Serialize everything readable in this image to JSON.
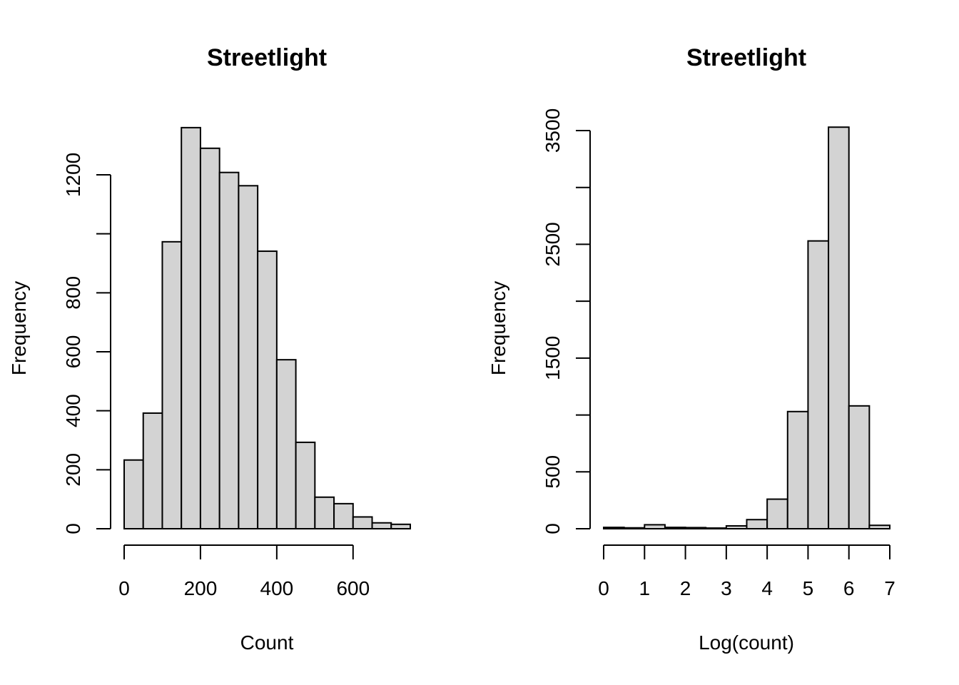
{
  "chart_data": [
    {
      "type": "bar",
      "title": "Streetlight",
      "xlabel": "Count",
      "ylabel": "Frequency",
      "bin_edges": [
        0,
        50,
        100,
        150,
        200,
        250,
        300,
        350,
        400,
        450,
        500,
        550,
        600,
        650,
        700,
        750
      ],
      "values": [
        233,
        392,
        973,
        1360,
        1290,
        1208,
        1163,
        941,
        573,
        293,
        107,
        85,
        40,
        20,
        15
      ],
      "xlim": [
        0,
        750
      ],
      "ylim": [
        0,
        1400
      ],
      "x_ticks": [
        0,
        200,
        400,
        600
      ],
      "y_ticks": [
        0,
        200,
        400,
        600,
        800,
        1000,
        1200
      ],
      "y_tick_labels": [
        "0",
        "200",
        "400",
        "600",
        "800",
        "",
        "1200"
      ],
      "grid": false
    },
    {
      "type": "bar",
      "title": "Streetlight",
      "xlabel": "Log(count)",
      "ylabel": "Frequency",
      "bin_edges": [
        0,
        0.5,
        1,
        1.5,
        2,
        2.5,
        3,
        3.5,
        4,
        4.5,
        5,
        5.5,
        6,
        6.5,
        7
      ],
      "values": [
        12,
        8,
        35,
        12,
        10,
        6,
        25,
        80,
        260,
        1030,
        2530,
        3530,
        1080,
        30
      ],
      "xlim": [
        0,
        7
      ],
      "ylim": [
        0,
        3600
      ],
      "x_ticks": [
        0,
        1,
        2,
        3,
        4,
        5,
        6,
        7
      ],
      "y_ticks": [
        0,
        500,
        1000,
        1500,
        2000,
        2500,
        3000,
        3500
      ],
      "y_tick_labels": [
        "0",
        "500",
        "",
        "1500",
        "",
        "2500",
        "",
        "3500"
      ],
      "grid": false
    }
  ]
}
